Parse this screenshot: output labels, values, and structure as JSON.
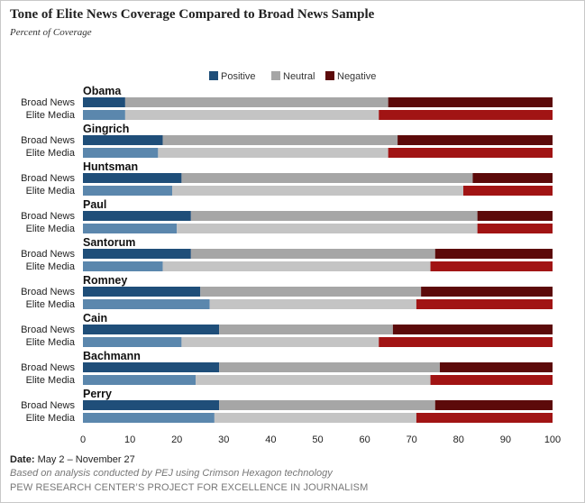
{
  "header": {
    "title": "Tone of Elite News Coverage Compared to Broad News Sample",
    "subtitle": "Percent of Coverage"
  },
  "footer": {
    "date_label": "Date:",
    "date_value": "May 2 – November 27",
    "basis": "Based on analysis conducted by PEJ using Crimson Hexagon technology",
    "source": "PEW RESEARCH CENTER’S PROJECT FOR EXCELLENCE IN JOURNALISM"
  },
  "colors": {
    "broad": {
      "positive": "#1f4e79",
      "neutral": "#a6a6a6",
      "negative": "#5c0a0a"
    },
    "elite": {
      "positive": "#5b87ad",
      "neutral": "#c4c4c4",
      "negative": "#a11414"
    }
  },
  "chart_data": {
    "type": "bar",
    "orientation": "horizontal",
    "stacked": true,
    "legend": [
      "Positive",
      "Neutral",
      "Negative"
    ],
    "legend_position": "top-center",
    "xlim": [
      0,
      100
    ],
    "xticks": [
      0,
      10,
      20,
      30,
      40,
      50,
      60,
      70,
      80,
      90,
      100
    ],
    "row_labels": [
      "Broad News",
      "Elite Media"
    ],
    "groups": [
      {
        "name": "Obama",
        "broad": [
          9,
          56,
          35
        ],
        "elite": [
          9,
          54,
          37
        ]
      },
      {
        "name": "Gingrich",
        "broad": [
          17,
          50,
          33
        ],
        "elite": [
          16,
          49,
          35
        ]
      },
      {
        "name": "Huntsman",
        "broad": [
          21,
          62,
          17
        ],
        "elite": [
          19,
          62,
          19
        ]
      },
      {
        "name": "Paul",
        "broad": [
          23,
          61,
          16
        ],
        "elite": [
          20,
          64,
          16
        ]
      },
      {
        "name": "Santorum",
        "broad": [
          23,
          52,
          25
        ],
        "elite": [
          17,
          57,
          26
        ]
      },
      {
        "name": "Romney",
        "broad": [
          25,
          47,
          28
        ],
        "elite": [
          27,
          44,
          29
        ]
      },
      {
        "name": "Cain",
        "broad": [
          29,
          37,
          34
        ],
        "elite": [
          21,
          42,
          37
        ]
      },
      {
        "name": "Bachmann",
        "broad": [
          29,
          47,
          24
        ],
        "elite": [
          24,
          50,
          26
        ]
      },
      {
        "name": "Perry",
        "broad": [
          29,
          46,
          25
        ],
        "elite": [
          28,
          43,
          29
        ]
      }
    ]
  }
}
